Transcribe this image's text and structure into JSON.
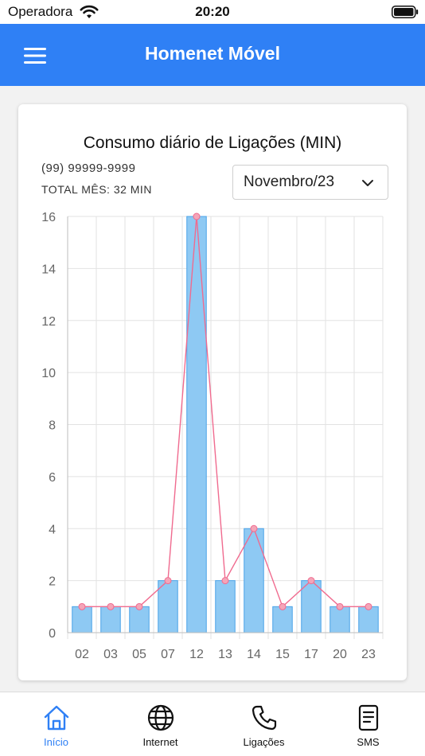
{
  "status_bar": {
    "carrier": "Operadora",
    "time": "20:20"
  },
  "app_bar": {
    "title": "Homenet Móvel",
    "menu_icon": "menu-icon"
  },
  "card": {
    "title": "Consumo diário de Ligações (MIN)",
    "phone": "(99) 99999-9999",
    "total": "TOTAL MÊS: 32 MIN",
    "month_select": {
      "value": "Novembro/23"
    }
  },
  "chart_data": {
    "type": "bar",
    "title": "Consumo diário de Ligações (MIN)",
    "categories": [
      "02",
      "03",
      "05",
      "07",
      "12",
      "13",
      "14",
      "15",
      "17",
      "20",
      "23"
    ],
    "series": [
      {
        "type": "bar",
        "values": [
          1,
          1,
          1,
          2,
          16,
          2,
          4,
          1,
          2,
          1,
          1
        ],
        "color": "#8ec9f3"
      },
      {
        "type": "line",
        "values": [
          1,
          1,
          1,
          2,
          16,
          2,
          4,
          1,
          2,
          1,
          1
        ],
        "color": "#f06b8f"
      }
    ],
    "ylim": [
      0,
      16
    ],
    "yticks": [
      0,
      2,
      4,
      6,
      8,
      10,
      12,
      14,
      16
    ],
    "grid": true,
    "xlabel": "",
    "ylabel": ""
  },
  "bottom_nav": {
    "active": "Início",
    "active_color": "#2f80f5",
    "items": [
      {
        "label": "Início",
        "icon": "home-icon"
      },
      {
        "label": "Internet",
        "icon": "globe-icon"
      },
      {
        "label": "Ligações",
        "icon": "phone-icon"
      },
      {
        "label": "SMS",
        "icon": "sms-icon"
      }
    ]
  },
  "colors": {
    "app_bar": "#2f80f5",
    "bar_fill": "#8ec9f3",
    "bar_stroke": "#4aa3e8",
    "line": "#f06b8f"
  }
}
